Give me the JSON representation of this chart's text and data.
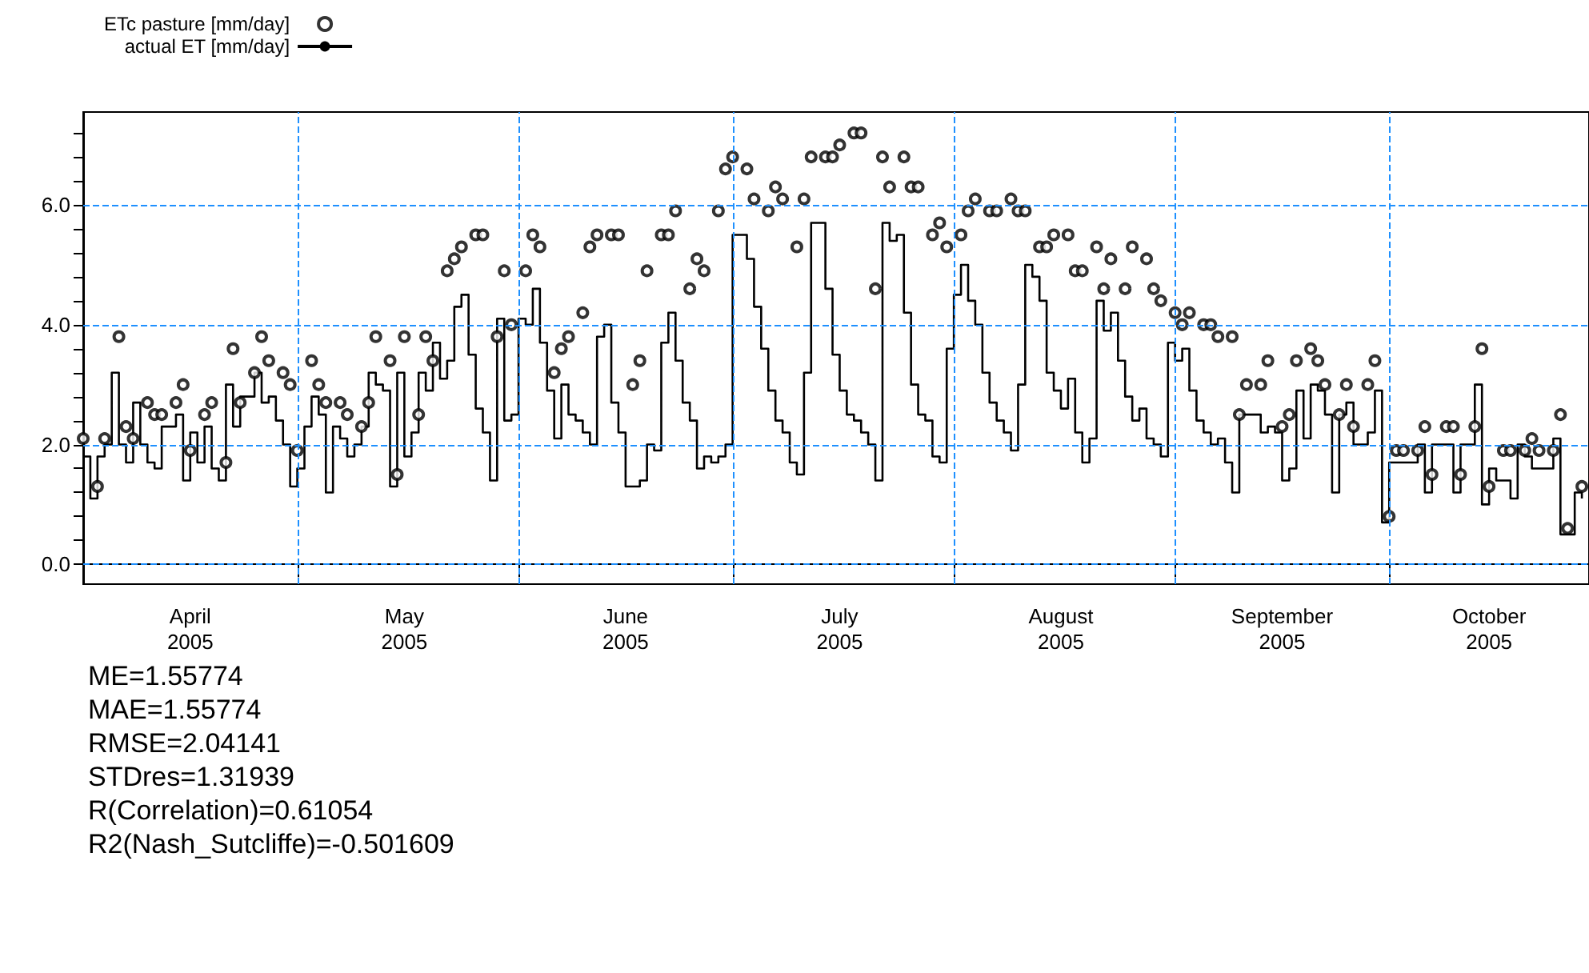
{
  "chart_data": {
    "type": "step",
    "series": [
      {
        "name": "ETc pasture [mm/day]",
        "type": "scatter",
        "marker": "circle",
        "color": "#000000",
        "x": [
          "2005-04-01",
          "2005-04-03",
          "2005-04-04",
          "2005-04-06",
          "2005-04-07",
          "2005-04-08",
          "2005-04-10",
          "2005-04-11",
          "2005-04-12",
          "2005-04-14",
          "2005-04-15",
          "2005-04-16",
          "2005-04-18",
          "2005-04-19",
          "2005-04-21",
          "2005-04-22",
          "2005-04-23",
          "2005-04-25",
          "2005-04-26",
          "2005-04-27",
          "2005-04-29",
          "2005-04-30",
          "2005-05-01",
          "2005-05-03",
          "2005-05-04",
          "2005-05-05",
          "2005-05-07",
          "2005-05-08",
          "2005-05-10",
          "2005-05-11",
          "2005-05-12",
          "2005-05-14",
          "2005-05-15",
          "2005-05-16",
          "2005-05-18",
          "2005-05-19",
          "2005-05-20",
          "2005-05-22",
          "2005-05-23",
          "2005-05-24",
          "2005-05-26",
          "2005-05-27",
          "2005-05-29",
          "2005-05-30",
          "2005-05-31",
          "2005-06-02",
          "2005-06-03",
          "2005-06-04",
          "2005-06-06",
          "2005-06-07",
          "2005-06-08",
          "2005-06-10",
          "2005-06-11",
          "2005-06-12",
          "2005-06-14",
          "2005-06-15",
          "2005-06-17",
          "2005-06-18",
          "2005-06-19",
          "2005-06-21",
          "2005-06-22",
          "2005-06-23",
          "2005-06-25",
          "2005-06-26",
          "2005-06-27",
          "2005-06-29",
          "2005-06-30",
          "2005-07-01",
          "2005-07-03",
          "2005-07-04",
          "2005-07-06",
          "2005-07-07",
          "2005-07-08",
          "2005-07-10",
          "2005-07-11",
          "2005-07-12",
          "2005-07-14",
          "2005-07-15",
          "2005-07-16",
          "2005-07-18",
          "2005-07-19",
          "2005-07-21",
          "2005-07-22",
          "2005-07-23",
          "2005-07-25",
          "2005-07-26",
          "2005-07-27",
          "2005-07-29",
          "2005-07-30",
          "2005-07-31",
          "2005-08-02",
          "2005-08-03",
          "2005-08-04",
          "2005-08-06",
          "2005-08-07",
          "2005-08-09",
          "2005-08-10",
          "2005-08-11",
          "2005-08-13",
          "2005-08-14",
          "2005-08-15",
          "2005-08-17",
          "2005-08-18",
          "2005-08-19",
          "2005-08-21",
          "2005-08-22",
          "2005-08-23",
          "2005-08-25",
          "2005-08-26",
          "2005-08-28",
          "2005-08-29",
          "2005-08-30",
          "2005-09-01",
          "2005-09-02",
          "2005-09-03",
          "2005-09-05",
          "2005-09-06",
          "2005-09-07",
          "2005-09-09",
          "2005-09-10",
          "2005-09-11",
          "2005-09-13",
          "2005-09-14",
          "2005-09-16",
          "2005-09-17",
          "2005-09-18",
          "2005-09-20",
          "2005-09-21",
          "2005-09-22",
          "2005-09-24",
          "2005-09-25",
          "2005-09-26",
          "2005-09-28",
          "2005-09-29",
          "2005-10-01",
          "2005-10-02",
          "2005-10-03",
          "2005-10-05",
          "2005-10-06",
          "2005-10-07",
          "2005-10-09",
          "2005-10-10",
          "2005-10-11",
          "2005-10-13",
          "2005-10-14",
          "2005-10-15",
          "2005-10-17",
          "2005-10-18",
          "2005-10-20",
          "2005-10-21",
          "2005-10-22",
          "2005-10-24",
          "2005-10-25",
          "2005-10-26",
          "2005-10-28"
        ],
        "values": [
          2.1,
          1.3,
          2.1,
          3.8,
          2.3,
          2.1,
          2.7,
          2.5,
          2.5,
          2.7,
          3.0,
          1.9,
          2.5,
          2.7,
          1.7,
          3.6,
          2.7,
          3.2,
          3.8,
          3.4,
          3.2,
          3.0,
          1.9,
          3.4,
          3.0,
          2.7,
          2.7,
          2.5,
          2.3,
          2.7,
          3.8,
          3.4,
          1.5,
          3.8,
          2.5,
          3.8,
          3.4,
          4.9,
          5.1,
          5.3,
          5.5,
          5.5,
          3.8,
          4.9,
          4.0,
          4.9,
          5.5,
          5.3,
          3.2,
          3.6,
          3.8,
          4.2,
          5.3,
          5.5,
          5.5,
          5.5,
          3.0,
          3.4,
          4.9,
          5.5,
          5.5,
          5.9,
          4.6,
          5.1,
          4.9,
          5.9,
          6.6,
          6.8,
          6.6,
          6.1,
          5.9,
          6.3,
          6.1,
          5.3,
          6.1,
          6.8,
          6.8,
          6.8,
          7.0,
          7.2,
          7.2,
          4.6,
          6.8,
          6.3,
          6.8,
          6.3,
          6.3,
          5.5,
          5.7,
          5.3,
          5.5,
          5.9,
          6.1,
          5.9,
          5.9,
          6.1,
          5.9,
          5.9,
          5.3,
          5.3,
          5.5,
          5.5,
          4.9,
          4.9,
          5.3,
          4.6,
          5.1,
          4.6,
          5.3,
          5.1,
          4.6,
          4.4,
          4.2,
          4.0,
          4.2,
          4.0,
          4.0,
          3.8,
          3.8,
          2.5,
          3.0,
          3.0,
          3.4,
          2.3,
          2.5,
          3.4,
          3.6,
          3.4,
          3.0,
          2.5,
          3.0,
          2.3,
          3.0,
          3.4,
          0.8,
          1.9,
          1.9,
          1.9,
          2.3,
          1.5,
          2.3,
          2.3,
          1.5,
          2.3,
          3.6,
          1.3,
          1.9,
          1.9,
          1.9,
          2.1,
          1.9,
          1.9,
          2.5,
          0.6,
          1.3
        ]
      },
      {
        "name": "actual ET [mm/day]",
        "marker": "none",
        "line_style": "solid",
        "color": "#000000",
        "x": [
          "2005-04-01",
          "2005-04-02",
          "2005-04-03",
          "2005-04-04",
          "2005-04-05",
          "2005-04-06",
          "2005-04-07",
          "2005-04-08",
          "2005-04-09",
          "2005-04-10",
          "2005-04-11",
          "2005-04-12",
          "2005-04-14",
          "2005-04-15",
          "2005-04-16",
          "2005-04-17",
          "2005-04-18",
          "2005-04-19",
          "2005-04-20",
          "2005-04-21",
          "2005-04-22",
          "2005-04-23",
          "2005-04-25",
          "2005-04-26",
          "2005-04-27",
          "2005-04-28",
          "2005-04-29",
          "2005-04-30",
          "2005-05-01",
          "2005-05-02",
          "2005-05-03",
          "2005-05-04",
          "2005-05-05",
          "2005-05-06",
          "2005-05-07",
          "2005-05-08",
          "2005-05-09",
          "2005-05-10",
          "2005-05-11",
          "2005-05-12",
          "2005-05-13",
          "2005-05-14",
          "2005-05-15",
          "2005-05-16",
          "2005-05-17",
          "2005-05-18",
          "2005-05-19",
          "2005-05-20",
          "2005-05-21",
          "2005-05-22",
          "2005-05-23",
          "2005-05-24",
          "2005-05-25",
          "2005-05-26",
          "2005-05-27",
          "2005-05-28",
          "2005-05-29",
          "2005-05-30",
          "2005-05-31",
          "2005-06-01",
          "2005-06-02",
          "2005-06-03",
          "2005-06-04",
          "2005-06-05",
          "2005-06-06",
          "2005-06-07",
          "2005-06-08",
          "2005-06-09",
          "2005-06-10",
          "2005-06-11",
          "2005-06-12",
          "2005-06-13",
          "2005-06-14",
          "2005-06-15",
          "2005-06-16",
          "2005-06-17",
          "2005-06-18",
          "2005-06-19",
          "2005-06-20",
          "2005-06-21",
          "2005-06-22",
          "2005-06-23",
          "2005-06-24",
          "2005-06-25",
          "2005-06-26",
          "2005-06-27",
          "2005-06-28",
          "2005-06-29",
          "2005-06-30",
          "2005-07-01",
          "2005-07-03",
          "2005-07-04",
          "2005-07-05",
          "2005-07-06",
          "2005-07-07",
          "2005-07-08",
          "2005-07-09",
          "2005-07-10",
          "2005-07-11",
          "2005-07-12",
          "2005-07-14",
          "2005-07-15",
          "2005-07-16",
          "2005-07-17",
          "2005-07-18",
          "2005-07-19",
          "2005-07-20",
          "2005-07-21",
          "2005-07-22",
          "2005-07-23",
          "2005-07-24",
          "2005-07-25",
          "2005-07-26",
          "2005-07-27",
          "2005-07-28",
          "2005-07-29",
          "2005-07-30",
          "2005-07-31",
          "2005-08-01",
          "2005-08-02",
          "2005-08-03",
          "2005-08-04",
          "2005-08-05",
          "2005-08-06",
          "2005-08-07",
          "2005-08-08",
          "2005-08-09",
          "2005-08-10",
          "2005-08-11",
          "2005-08-12",
          "2005-08-13",
          "2005-08-14",
          "2005-08-15",
          "2005-08-16",
          "2005-08-17",
          "2005-08-18",
          "2005-08-19",
          "2005-08-20",
          "2005-08-21",
          "2005-08-22",
          "2005-08-23",
          "2005-08-24",
          "2005-08-25",
          "2005-08-26",
          "2005-08-27",
          "2005-08-28",
          "2005-08-29",
          "2005-08-30",
          "2005-08-31",
          "2005-09-01",
          "2005-09-02",
          "2005-09-03",
          "2005-09-04",
          "2005-09-05",
          "2005-09-06",
          "2005-09-07",
          "2005-09-08",
          "2005-09-09",
          "2005-09-10",
          "2005-09-13",
          "2005-09-14",
          "2005-09-15",
          "2005-09-16",
          "2005-09-17",
          "2005-09-18",
          "2005-09-19",
          "2005-09-20",
          "2005-09-21",
          "2005-09-22",
          "2005-09-23",
          "2005-09-24",
          "2005-09-25",
          "2005-09-26",
          "2005-09-27",
          "2005-09-28",
          "2005-09-29",
          "2005-09-30",
          "2005-10-01",
          "2005-10-05",
          "2005-10-06",
          "2005-10-07",
          "2005-10-10",
          "2005-10-11",
          "2005-10-13",
          "2005-10-14",
          "2005-10-15",
          "2005-10-16",
          "2005-10-18",
          "2005-10-19",
          "2005-10-20",
          "2005-10-21",
          "2005-10-24",
          "2005-10-25",
          "2005-10-27",
          "2005-10-28"
        ],
        "values": [
          1.8,
          1.1,
          1.8,
          2.0,
          3.2,
          2.0,
          1.7,
          2.7,
          2.0,
          1.7,
          1.6,
          2.3,
          2.5,
          1.4,
          2.2,
          1.7,
          2.3,
          1.6,
          1.4,
          3.0,
          2.3,
          2.8,
          3.2,
          2.7,
          2.8,
          2.4,
          2.0,
          1.3,
          1.6,
          2.3,
          2.8,
          2.5,
          1.2,
          2.3,
          2.1,
          1.8,
          2.0,
          2.3,
          3.2,
          3.0,
          2.9,
          1.3,
          3.2,
          1.8,
          2.2,
          3.2,
          2.9,
          3.7,
          3.1,
          3.4,
          4.3,
          4.5,
          3.5,
          2.6,
          2.2,
          1.4,
          4.1,
          2.4,
          2.5,
          4.1,
          4.0,
          4.6,
          3.7,
          2.9,
          2.1,
          3.0,
          2.5,
          2.4,
          2.2,
          2.0,
          3.8,
          4.0,
          2.7,
          2.2,
          1.3,
          1.3,
          1.4,
          2.0,
          1.9,
          3.7,
          4.2,
          3.4,
          2.7,
          2.4,
          1.6,
          1.8,
          1.7,
          1.8,
          2.0,
          5.5,
          5.1,
          4.3,
          3.6,
          2.9,
          2.4,
          2.2,
          1.7,
          1.5,
          3.2,
          5.7,
          4.6,
          3.5,
          2.9,
          2.5,
          2.4,
          2.2,
          2.0,
          1.4,
          5.7,
          5.4,
          5.5,
          4.2,
          3.0,
          2.5,
          2.4,
          1.8,
          1.7,
          3.6,
          4.5,
          5.0,
          4.4,
          4.0,
          3.2,
          2.7,
          2.4,
          2.2,
          1.9,
          3.0,
          5.0,
          4.8,
          4.4,
          3.2,
          2.9,
          2.6,
          3.1,
          2.2,
          1.7,
          2.1,
          4.4,
          3.9,
          4.2,
          3.4,
          2.8,
          2.4,
          2.6,
          2.1,
          2.0,
          1.8,
          3.7,
          3.4,
          3.6,
          2.9,
          2.4,
          2.2,
          2.0,
          2.1,
          1.7,
          1.2,
          2.5,
          2.2,
          2.3,
          2.2,
          1.4,
          1.6,
          2.9,
          2.1,
          3.0,
          2.9,
          2.5,
          1.2,
          2.5,
          2.7,
          2.0,
          2.0,
          2.2,
          2.9,
          0.7,
          1.7,
          2.0,
          1.2,
          2.0,
          1.2,
          2.0,
          3.0,
          1.0,
          1.6,
          1.4,
          1.1,
          2.0,
          1.8,
          1.6,
          2.1,
          0.5,
          1.2,
          1.1
        ]
      }
    ],
    "xlim": [
      "2005-04-01",
      "2005-10-29"
    ],
    "xticks": [
      {
        "value": "2005-04-16",
        "label": "April\n2005"
      },
      {
        "value": "2005-05-01",
        "label": null
      },
      {
        "value": "2005-05-16",
        "label": "May\n2005"
      },
      {
        "value": "2005-06-01",
        "label": null
      },
      {
        "value": "2005-06-16",
        "label": "June\n2005"
      },
      {
        "value": "2005-07-01",
        "label": null
      },
      {
        "value": "2005-07-16",
        "label": "July\n2005"
      },
      {
        "value": "2005-08-01",
        "label": null
      },
      {
        "value": "2005-08-16",
        "label": "August\n2005"
      },
      {
        "value": "2005-09-01",
        "label": null
      },
      {
        "value": "2005-09-16",
        "label": "September\n2005"
      },
      {
        "value": "2005-10-01",
        "label": null
      },
      {
        "value": "2005-10-15",
        "label": "October\n2005"
      }
    ],
    "ylim": [
      -0.33,
      7.55
    ],
    "yticks": [
      {
        "value": 0,
        "label": "0.0"
      },
      {
        "value": 0.4,
        "label": null
      },
      {
        "value": 0.8,
        "label": null
      },
      {
        "value": 1.2,
        "label": null
      },
      {
        "value": 1.6,
        "label": null
      },
      {
        "value": 2,
        "label": "2.0"
      },
      {
        "value": 2.4,
        "label": null
      },
      {
        "value": 2.8,
        "label": null
      },
      {
        "value": 3.2,
        "label": null
      },
      {
        "value": 3.6,
        "label": null
      },
      {
        "value": 4,
        "label": "4.0"
      },
      {
        "value": 4.4,
        "label": null
      },
      {
        "value": 4.8,
        "label": null
      },
      {
        "value": 5.2,
        "label": null
      },
      {
        "value": 5.6,
        "label": null
      },
      {
        "value": 6,
        "label": "6.0"
      },
      {
        "value": 6.4,
        "label": null
      },
      {
        "value": 6.8,
        "label": null
      },
      {
        "value": 7.2,
        "label": null
      }
    ],
    "grid": "y",
    "legend": "top left",
    "ref_lines": [
      {
        "axis": "x",
        "value": "2005-05-01",
        "color": "#1e90ff",
        "line_style": "dashed"
      },
      {
        "axis": "x",
        "value": "2005-06-01",
        "color": "#1e90ff",
        "line_style": "dashed"
      },
      {
        "axis": "x",
        "value": "2005-07-01",
        "color": "#1e90ff",
        "line_style": "dashed"
      },
      {
        "axis": "x",
        "value": "2005-08-01",
        "color": "#1e90ff",
        "line_style": "dashed"
      },
      {
        "axis": "x",
        "value": "2005-09-01",
        "color": "#1e90ff",
        "line_style": "dashed"
      },
      {
        "axis": "x",
        "value": "2005-10-01",
        "color": "#1e90ff",
        "line_style": "dashed"
      }
    ],
    "annotations": [
      "ME=1.55774",
      "MAE=1.55774",
      "RMSE=2.04141",
      "STDres=1.31939",
      "R(Correlation)=0.61054",
      "R2(Nash_Sutcliffe)=-0.501609"
    ]
  }
}
